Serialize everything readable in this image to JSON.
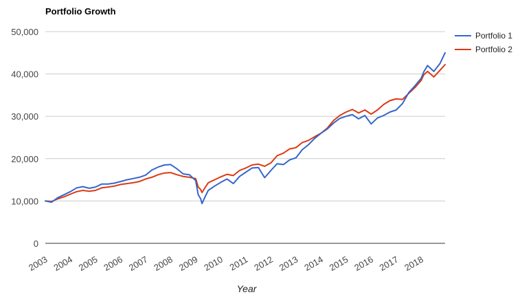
{
  "chart_data": {
    "type": "line",
    "title": "Portfolio Growth",
    "xlabel": "Year",
    "ylabel": "",
    "ylim": [
      0,
      50000
    ],
    "yticks": [
      0,
      10000,
      20000,
      30000,
      40000,
      50000
    ],
    "ytick_labels": [
      "0",
      "10,000",
      "20,000",
      "30,000",
      "40,000",
      "50,000"
    ],
    "xlim": [
      2003.0,
      2018.95
    ],
    "xticks": [
      2003,
      2004,
      2005,
      2006,
      2007,
      2008,
      2009,
      2010,
      2011,
      2012,
      2013,
      2014,
      2015,
      2016,
      2017,
      2018
    ],
    "xtick_labels": [
      "2003",
      "2004",
      "2005",
      "2006",
      "2007",
      "2008",
      "2009",
      "2010",
      "2011",
      "2012",
      "2013",
      "2014",
      "2015",
      "2016",
      "2017",
      "2018"
    ],
    "grid": true,
    "legend_position": "right",
    "series": [
      {
        "name": "Portfolio 1",
        "color": "#3366cc",
        "x": [
          2003.0,
          2003.25,
          2003.5,
          2003.75,
          2004.0,
          2004.25,
          2004.5,
          2004.75,
          2005.0,
          2005.25,
          2005.5,
          2005.75,
          2006.0,
          2006.25,
          2006.5,
          2006.75,
          2007.0,
          2007.25,
          2007.5,
          2007.75,
          2008.0,
          2008.25,
          2008.5,
          2008.75,
          2009.0,
          2009.1,
          2009.2,
          2009.25,
          2009.4,
          2009.5,
          2009.75,
          2010.0,
          2010.25,
          2010.5,
          2010.75,
          2011.0,
          2011.25,
          2011.5,
          2011.75,
          2012.0,
          2012.25,
          2012.5,
          2012.75,
          2013.0,
          2013.25,
          2013.5,
          2013.75,
          2014.0,
          2014.25,
          2014.5,
          2014.75,
          2015.0,
          2015.25,
          2015.5,
          2015.75,
          2016.0,
          2016.25,
          2016.5,
          2016.75,
          2017.0,
          2017.25,
          2017.5,
          2017.75,
          2018.0,
          2018.1,
          2018.25,
          2018.5,
          2018.75,
          2018.95
        ],
        "values": [
          10000,
          9700,
          10800,
          11500,
          12200,
          13100,
          13400,
          13000,
          13300,
          14000,
          14000,
          14200,
          14600,
          15000,
          15300,
          15600,
          16100,
          17300,
          18000,
          18500,
          18600,
          17600,
          16400,
          16200,
          14800,
          11500,
          10500,
          9400,
          11300,
          12500,
          13500,
          14400,
          15200,
          14100,
          15800,
          16800,
          17800,
          17900,
          15500,
          17200,
          18800,
          18600,
          19700,
          20200,
          22100,
          23300,
          24800,
          26000,
          27000,
          28400,
          29500,
          30000,
          30400,
          29400,
          30200,
          28200,
          29600,
          30200,
          31000,
          31500,
          33000,
          35600,
          37200,
          39000,
          40500,
          42000,
          40600,
          42500,
          45000
        ]
      },
      {
        "name": "Portfolio 2",
        "color": "#dc3912",
        "x": [
          2003.0,
          2003.25,
          2003.5,
          2003.75,
          2004.0,
          2004.25,
          2004.5,
          2004.75,
          2005.0,
          2005.25,
          2005.5,
          2005.75,
          2006.0,
          2006.25,
          2006.5,
          2006.75,
          2007.0,
          2007.25,
          2007.5,
          2007.75,
          2008.0,
          2008.25,
          2008.5,
          2008.75,
          2009.0,
          2009.1,
          2009.2,
          2009.25,
          2009.4,
          2009.5,
          2009.75,
          2010.0,
          2010.25,
          2010.5,
          2010.75,
          2011.0,
          2011.25,
          2011.5,
          2011.75,
          2012.0,
          2012.25,
          2012.5,
          2012.75,
          2013.0,
          2013.25,
          2013.5,
          2013.75,
          2014.0,
          2014.25,
          2014.5,
          2014.75,
          2015.0,
          2015.25,
          2015.5,
          2015.75,
          2016.0,
          2016.25,
          2016.5,
          2016.75,
          2017.0,
          2017.25,
          2017.5,
          2017.75,
          2018.0,
          2018.1,
          2018.25,
          2018.5,
          2018.75,
          2018.95
        ],
        "values": [
          10000,
          9900,
          10500,
          11000,
          11600,
          12200,
          12500,
          12300,
          12500,
          13100,
          13300,
          13500,
          13900,
          14100,
          14300,
          14600,
          15200,
          15600,
          16200,
          16600,
          16700,
          16200,
          15800,
          15600,
          15300,
          13300,
          12700,
          12000,
          13400,
          14300,
          15000,
          15700,
          16300,
          16000,
          17200,
          17800,
          18500,
          18700,
          18200,
          19000,
          20700,
          21300,
          22300,
          22600,
          23800,
          24300,
          25200,
          26000,
          27200,
          29000,
          30200,
          31000,
          31600,
          30800,
          31500,
          30500,
          31500,
          32800,
          33700,
          34100,
          34000,
          35400,
          36800,
          38500,
          39800,
          40600,
          39300,
          40900,
          42200
        ]
      }
    ]
  }
}
